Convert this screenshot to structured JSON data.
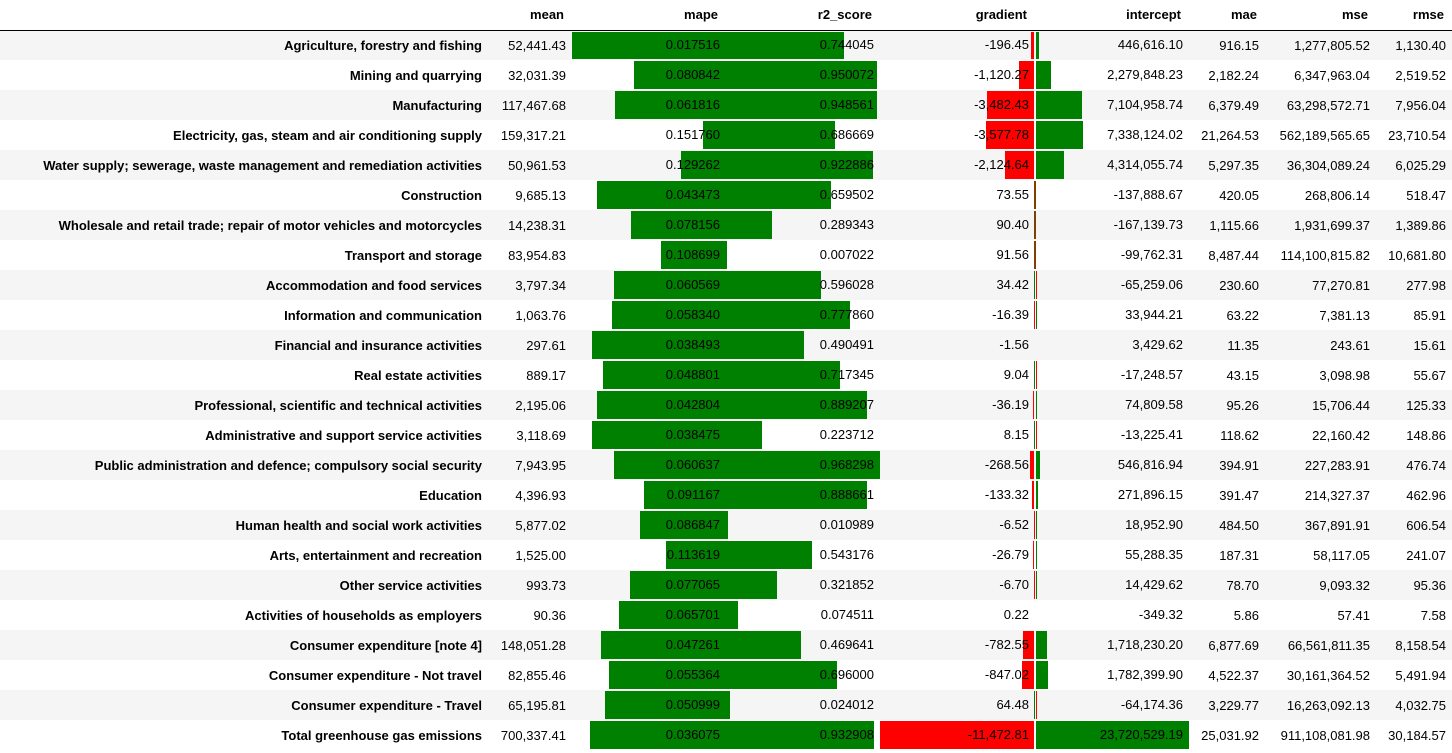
{
  "colors": {
    "positive_bar": "#008000",
    "negative_bar": "#ff0000",
    "row_stripe": "#f5f5f5",
    "header_border": "#000000"
  },
  "columns": [
    "",
    "mean",
    "mape",
    "r2_score",
    "gradient",
    "intercept",
    "mae",
    "mse",
    "rmse"
  ],
  "rows": [
    {
      "label": "Agriculture, forestry and fishing",
      "mean": "52,441.43",
      "mape": "0.017516",
      "r2_score": "0.744045",
      "gradient": "-196.45",
      "intercept": "446,616.10",
      "mae": "916.15",
      "mse": "1,277,805.52",
      "rmse": "1,130.40"
    },
    {
      "label": "Mining and quarrying",
      "mean": "32,031.39",
      "mape": "0.080842",
      "r2_score": "0.950072",
      "gradient": "-1,120.27",
      "intercept": "2,279,848.23",
      "mae": "2,182.24",
      "mse": "6,347,963.04",
      "rmse": "2,519.52"
    },
    {
      "label": "Manufacturing",
      "mean": "117,467.68",
      "mape": "0.061816",
      "r2_score": "0.948561",
      "gradient": "-3,482.43",
      "intercept": "7,104,958.74",
      "mae": "6,379.49",
      "mse": "63,298,572.71",
      "rmse": "7,956.04"
    },
    {
      "label": "Electricity, gas, steam and air conditioning supply",
      "mean": "159,317.21",
      "mape": "0.151760",
      "r2_score": "0.686669",
      "gradient": "-3,577.78",
      "intercept": "7,338,124.02",
      "mae": "21,264.53",
      "mse": "562,189,565.65",
      "rmse": "23,710.54"
    },
    {
      "label": "Water supply; sewerage, waste management and remediation activities",
      "mean": "50,961.53",
      "mape": "0.129262",
      "r2_score": "0.922886",
      "gradient": "-2,124.64",
      "intercept": "4,314,055.74",
      "mae": "5,297.35",
      "mse": "36,304,089.24",
      "rmse": "6,025.29"
    },
    {
      "label": "Construction",
      "mean": "9,685.13",
      "mape": "0.043473",
      "r2_score": "0.659502",
      "gradient": "73.55",
      "intercept": "-137,888.67",
      "mae": "420.05",
      "mse": "268,806.14",
      "rmse": "518.47"
    },
    {
      "label": "Wholesale and retail trade; repair of motor vehicles and motorcycles",
      "mean": "14,238.31",
      "mape": "0.078156",
      "r2_score": "0.289343",
      "gradient": "90.40",
      "intercept": "-167,139.73",
      "mae": "1,115.66",
      "mse": "1,931,699.37",
      "rmse": "1,389.86"
    },
    {
      "label": "Transport and storage",
      "mean": "83,954.83",
      "mape": "0.108699",
      "r2_score": "0.007022",
      "gradient": "91.56",
      "intercept": "-99,762.31",
      "mae": "8,487.44",
      "mse": "114,100,815.82",
      "rmse": "10,681.80"
    },
    {
      "label": "Accommodation and food services",
      "mean": "3,797.34",
      "mape": "0.060569",
      "r2_score": "0.596028",
      "gradient": "34.42",
      "intercept": "-65,259.06",
      "mae": "230.60",
      "mse": "77,270.81",
      "rmse": "277.98"
    },
    {
      "label": "Information and communication",
      "mean": "1,063.76",
      "mape": "0.058340",
      "r2_score": "0.777860",
      "gradient": "-16.39",
      "intercept": "33,944.21",
      "mae": "63.22",
      "mse": "7,381.13",
      "rmse": "85.91"
    },
    {
      "label": "Financial and insurance activities",
      "mean": "297.61",
      "mape": "0.038493",
      "r2_score": "0.490491",
      "gradient": "-1.56",
      "intercept": "3,429.62",
      "mae": "11.35",
      "mse": "243.61",
      "rmse": "15.61"
    },
    {
      "label": "Real estate activities",
      "mean": "889.17",
      "mape": "0.048801",
      "r2_score": "0.717345",
      "gradient": "9.04",
      "intercept": "-17,248.57",
      "mae": "43.15",
      "mse": "3,098.98",
      "rmse": "55.67"
    },
    {
      "label": "Professional, scientific and technical activities",
      "mean": "2,195.06",
      "mape": "0.042804",
      "r2_score": "0.889207",
      "gradient": "-36.19",
      "intercept": "74,809.58",
      "mae": "95.26",
      "mse": "15,706.44",
      "rmse": "125.33"
    },
    {
      "label": "Administrative and support service activities",
      "mean": "3,118.69",
      "mape": "0.038475",
      "r2_score": "0.223712",
      "gradient": "8.15",
      "intercept": "-13,225.41",
      "mae": "118.62",
      "mse": "22,160.42",
      "rmse": "148.86"
    },
    {
      "label": "Public administration and defence; compulsory social security",
      "mean": "7,943.95",
      "mape": "0.060637",
      "r2_score": "0.968298",
      "gradient": "-268.56",
      "intercept": "546,816.94",
      "mae": "394.91",
      "mse": "227,283.91",
      "rmse": "476.74"
    },
    {
      "label": "Education",
      "mean": "4,396.93",
      "mape": "0.091167",
      "r2_score": "0.888661",
      "gradient": "-133.32",
      "intercept": "271,896.15",
      "mae": "391.47",
      "mse": "214,327.37",
      "rmse": "462.96"
    },
    {
      "label": "Human health and social work activities",
      "mean": "5,877.02",
      "mape": "0.086847",
      "r2_score": "0.010989",
      "gradient": "-6.52",
      "intercept": "18,952.90",
      "mae": "484.50",
      "mse": "367,891.91",
      "rmse": "606.54"
    },
    {
      "label": "Arts, entertainment and recreation",
      "mean": "1,525.00",
      "mape": "0.113619",
      "r2_score": "0.543176",
      "gradient": "-26.79",
      "intercept": "55,288.35",
      "mae": "187.31",
      "mse": "58,117.05",
      "rmse": "241.07"
    },
    {
      "label": "Other service activities",
      "mean": "993.73",
      "mape": "0.077065",
      "r2_score": "0.321852",
      "gradient": "-6.70",
      "intercept": "14,429.62",
      "mae": "78.70",
      "mse": "9,093.32",
      "rmse": "95.36"
    },
    {
      "label": "Activities of households as employers",
      "mean": "90.36",
      "mape": "0.065701",
      "r2_score": "0.074511",
      "gradient": "0.22",
      "intercept": "-349.32",
      "mae": "5.86",
      "mse": "57.41",
      "rmse": "7.58"
    },
    {
      "label": "Consumer expenditure [note 4]",
      "mean": "148,051.28",
      "mape": "0.047261",
      "r2_score": "0.469641",
      "gradient": "-782.55",
      "intercept": "1,718,230.20",
      "mae": "6,877.69",
      "mse": "66,561,811.35",
      "rmse": "8,158.54"
    },
    {
      "label": "Consumer expenditure - Not travel",
      "mean": "82,855.46",
      "mape": "0.055364",
      "r2_score": "0.696000",
      "gradient": "-847.02",
      "intercept": "1,782,399.90",
      "mae": "4,522.37",
      "mse": "30,161,364.52",
      "rmse": "5,491.94"
    },
    {
      "label": "Consumer expenditure - Travel",
      "mean": "65,195.81",
      "mape": "0.050999",
      "r2_score": "0.024012",
      "gradient": "64.48",
      "intercept": "-64,174.36",
      "mae": "3,229.77",
      "mse": "16,263,092.13",
      "rmse": "4,032.75"
    },
    {
      "label": "Total greenhouse gas emissions",
      "mean": "700,337.41",
      "mape": "0.036075",
      "r2_score": "0.932908",
      "gradient": "-11,472.81",
      "intercept": "23,720,529.19",
      "mae": "25,031.92",
      "mse": "911,108,081.98",
      "rmse": "30,184.57"
    }
  ]
}
